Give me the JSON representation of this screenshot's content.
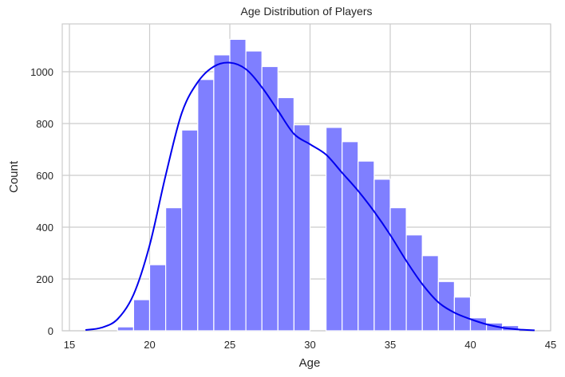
{
  "chart_data": {
    "type": "bar",
    "title": "Age Distribution of Players",
    "xlabel": "Age",
    "ylabel": "Count",
    "xlim": [
      14.6,
      45.3
    ],
    "ylim": [
      0,
      1180
    ],
    "xticks": [
      15,
      20,
      25,
      30,
      35,
      40,
      45
    ],
    "yticks": [
      0,
      200,
      400,
      600,
      800,
      1000
    ],
    "grid": true,
    "legend": null,
    "bin_width": 1,
    "bins": [
      {
        "start": 18,
        "count": 15
      },
      {
        "start": 19,
        "count": 120
      },
      {
        "start": 20,
        "count": 255
      },
      {
        "start": 21,
        "count": 475
      },
      {
        "start": 22,
        "count": 775
      },
      {
        "start": 23,
        "count": 970
      },
      {
        "start": 24,
        "count": 1065
      },
      {
        "start": 25,
        "count": 1125
      },
      {
        "start": 26,
        "count": 1080
      },
      {
        "start": 27,
        "count": 1020
      },
      {
        "start": 28,
        "count": 900
      },
      {
        "start": 29,
        "count": 795
      },
      {
        "start": 30,
        "count": 0
      },
      {
        "start": 31,
        "count": 785
      },
      {
        "start": 32,
        "count": 730
      },
      {
        "start": 33,
        "count": 655
      },
      {
        "start": 34,
        "count": 585
      },
      {
        "start": 35,
        "count": 475
      },
      {
        "start": 36,
        "count": 370
      },
      {
        "start": 37,
        "count": 290
      },
      {
        "start": 38,
        "count": 190
      },
      {
        "start": 39,
        "count": 130
      },
      {
        "start": 40,
        "count": 50
      },
      {
        "start": 41,
        "count": 30
      },
      {
        "start": 42,
        "count": 20
      }
    ],
    "kde": {
      "x": [
        16,
        17,
        18,
        19,
        20,
        21,
        22,
        23,
        24,
        25,
        26,
        27,
        28,
        29,
        30,
        31,
        32,
        33,
        34,
        35,
        36,
        37,
        38,
        39,
        40,
        41,
        42,
        43,
        44
      ],
      "y": [
        3,
        12,
        45,
        140,
        330,
        600,
        840,
        960,
        1020,
        1035,
        1010,
        940,
        850,
        760,
        720,
        680,
        610,
        540,
        460,
        370,
        270,
        180,
        110,
        70,
        45,
        25,
        12,
        5,
        2
      ]
    },
    "colors": {
      "bar": "#7f7fff",
      "kde": "#0000ee",
      "grid": "#cccccc"
    }
  }
}
